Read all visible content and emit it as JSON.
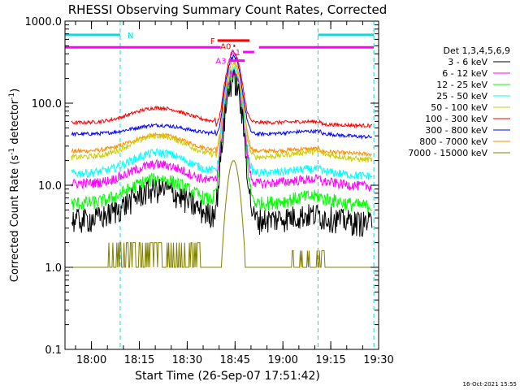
{
  "chart_data": {
    "type": "line",
    "title": "RHESSI Observing Summary Count Rates, Corrected",
    "xlabel": "Start Time (26-Sep-07 17:51:42)",
    "ylabel_main": "Corrected Count Rate (s",
    "ylabel_exp1": "-1",
    "ylabel_mid": " detector",
    "ylabel_exp2": "-1",
    "ylabel_end": ")",
    "y_scale": "log",
    "ylim": [
      0.1,
      1000
    ],
    "xlim": [
      "17:51:42",
      "19:30:00"
    ],
    "x_ticks": [
      "18:00",
      "18:15",
      "18:30",
      "18:45",
      "19:00",
      "19:15",
      "19:30"
    ],
    "y_ticks": [
      "0.1",
      "1.0",
      "10.0",
      "100.0",
      "1000.0"
    ],
    "legend_position": "right",
    "legend_title": "Det 1,3,4,5,6,9",
    "timestamp": "16-Oct-2021 15:55",
    "flags": [
      {
        "name": "N",
        "color": "#00e0e0",
        "intervals": [
          [
            "17:51:42",
            "18:09:00"
          ],
          [
            "19:11:00",
            "19:28:30"
          ]
        ],
        "level": 680
      },
      {
        "name": "",
        "color": "#ff00ff",
        "intervals": [
          [
            "17:51:42",
            "18:40:30"
          ],
          [
            "18:52:30",
            "19:28:30"
          ]
        ],
        "level": 480
      },
      {
        "name": "F",
        "color": "#ff0000",
        "intervals": [
          [
            "18:39:30",
            "18:49:30"
          ]
        ],
        "level": 580
      },
      {
        "name": "A0",
        "color": "#ff0000",
        "intervals": [
          [
            "18:44:30",
            "18:45:00"
          ]
        ],
        "level": 500
      },
      {
        "name": "A1",
        "color": "#ff00ff",
        "intervals": [
          [
            "18:47:30",
            "18:51:00"
          ]
        ],
        "level": 420
      },
      {
        "name": "A3",
        "color": "#ff00ff",
        "intervals": [
          [
            "18:43:00",
            "18:48:00"
          ]
        ],
        "level": 330
      }
    ],
    "vlines": [
      "17:51:42",
      "18:09:00",
      "19:11:00",
      "19:28:30"
    ],
    "series": [
      {
        "name": "3 - 6 keV",
        "color": "#000000",
        "base": 3.8,
        "bump": 9,
        "tail": 4.5,
        "peak": 190,
        "noise": 0.35
      },
      {
        "name": "6 - 12 keV",
        "color": "#ff00ff",
        "base": 10.5,
        "bump": 18,
        "tail": 12,
        "peak": 230,
        "noise": 0.14
      },
      {
        "name": "12 - 25 keV",
        "color": "#00ff00",
        "base": 6.0,
        "bump": 12,
        "tail": 7.5,
        "peak": 215,
        "noise": 0.2
      },
      {
        "name": "25 - 50 keV",
        "color": "#00ffff",
        "base": 14,
        "bump": 25,
        "tail": 16,
        "peak": 250,
        "noise": 0.12
      },
      {
        "name": "50 - 100 keV",
        "color": "#cccc00",
        "base": 22,
        "bump": 40,
        "tail": 26,
        "peak": 270,
        "noise": 0.08
      },
      {
        "name": "100 - 300 keV",
        "color": "#ff0000",
        "base": 58,
        "bump": 88,
        "tail": 60,
        "peak": 360,
        "noise": 0.05
      },
      {
        "name": "300 - 800 keV",
        "color": "#0000ff",
        "base": 42,
        "bump": 54,
        "tail": 46,
        "peak": 330,
        "noise": 0.05
      },
      {
        "name": "800 - 7000 keV",
        "color": "#ff8c00",
        "base": 26,
        "bump": 41,
        "tail": 28,
        "peak": 300,
        "noise": 0.06
      },
      {
        "name": "7000 - 15000 keV",
        "color": "#808000",
        "base": 1.0,
        "bump": 1.0,
        "tail": 1.0,
        "peak": 20,
        "noise": 0
      }
    ]
  }
}
